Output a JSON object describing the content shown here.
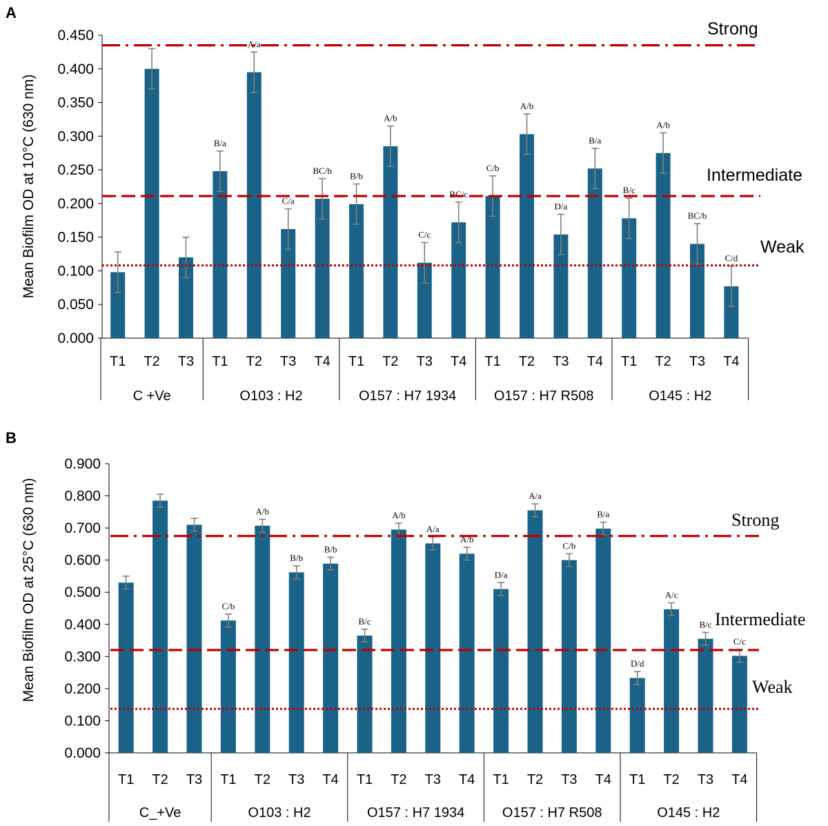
{
  "colors": {
    "bar": "#1a6287",
    "error": "#7f7f7f",
    "threshold": "#c00000",
    "axis": "#000000"
  },
  "chart_data": [
    {
      "panel": "A",
      "type": "bar",
      "ylabel": "Mean Biofilm OD at 10°C (630 nm)",
      "ylim": [
        0,
        0.45
      ],
      "yticks": [
        0,
        0.05,
        0.1,
        0.15,
        0.2,
        0.25,
        0.3,
        0.35,
        0.4,
        0.45
      ],
      "ytick_labels": [
        "0.000",
        "0.050",
        "0.100",
        "0.150",
        "0.200",
        "0.250",
        "0.300",
        "0.350",
        "0.400",
        "0.450"
      ],
      "groups": [
        {
          "name": "C  +Ve",
          "categories": [
            "T1",
            "T2",
            "T3"
          ],
          "values": [
            0.098,
            0.4,
            0.12
          ],
          "errors": [
            0.03,
            0.03,
            0.03
          ],
          "labels": [
            "",
            "",
            ""
          ]
        },
        {
          "name": "O103 : H2",
          "categories": [
            "T1",
            "T2",
            "T3",
            "T4"
          ],
          "values": [
            0.248,
            0.395,
            0.162,
            0.207
          ],
          "errors": [
            0.03,
            0.03,
            0.03,
            0.03
          ],
          "labels": [
            "B/a",
            "A/a",
            "C/a",
            "BC/b"
          ]
        },
        {
          "name": "O157 : H7 1934",
          "categories": [
            "T1",
            "T2",
            "T3",
            "T4"
          ],
          "values": [
            0.199,
            0.285,
            0.112,
            0.172
          ],
          "errors": [
            0.03,
            0.03,
            0.03,
            0.03
          ],
          "labels": [
            "B/b",
            "A/b",
            "C/c",
            "BC/c"
          ]
        },
        {
          "name": "O157 : H7 R508",
          "categories": [
            "T1",
            "T2",
            "T3",
            "T4"
          ],
          "values": [
            0.211,
            0.303,
            0.154,
            0.252
          ],
          "errors": [
            0.03,
            0.03,
            0.03,
            0.03
          ],
          "labels": [
            "C/b",
            "A/b",
            "D/a",
            "B/a"
          ]
        },
        {
          "name": "O145 : H2",
          "categories": [
            "T1",
            "T2",
            "T3",
            "T4"
          ],
          "values": [
            0.178,
            0.275,
            0.14,
            0.077
          ],
          "errors": [
            0.03,
            0.03,
            0.03,
            0.03
          ],
          "labels": [
            "B/c",
            "A/b",
            "BC/b",
            "C/d"
          ]
        }
      ],
      "thresholds": [
        {
          "name": "Strong",
          "value": 0.435,
          "style": "dash-dot"
        },
        {
          "name": "Intermediate",
          "value": 0.211,
          "style": "dashed"
        },
        {
          "name": "Weak",
          "value": 0.108,
          "style": "dotted"
        }
      ]
    },
    {
      "panel": "B",
      "type": "bar",
      "ylabel": "Mean Biofilm OD at 25°C (630 nm)",
      "ylim": [
        0,
        0.9
      ],
      "yticks": [
        0,
        0.1,
        0.2,
        0.3,
        0.4,
        0.5,
        0.6,
        0.7,
        0.8,
        0.9
      ],
      "ytick_labels": [
        "0.000",
        "0.100",
        "0.200",
        "0.300",
        "0.400",
        "0.500",
        "0.600",
        "0.700",
        "0.800",
        "0.900"
      ],
      "groups": [
        {
          "name": "C_+Ve",
          "categories": [
            "T1",
            "T2",
            "T3"
          ],
          "values": [
            0.53,
            0.785,
            0.71
          ],
          "errors": [
            0.02,
            0.02,
            0.02
          ],
          "labels": [
            "",
            "",
            ""
          ]
        },
        {
          "name": "O103 : H2",
          "categories": [
            "T1",
            "T2",
            "T3",
            "T4"
          ],
          "values": [
            0.412,
            0.707,
            0.562,
            0.589
          ],
          "errors": [
            0.02,
            0.02,
            0.02,
            0.02
          ],
          "labels": [
            "C/b",
            "A/b",
            "B/b",
            "B/b"
          ]
        },
        {
          "name": "O157 : H7 1934",
          "categories": [
            "T1",
            "T2",
            "T3",
            "T4"
          ],
          "values": [
            0.365,
            0.695,
            0.652,
            0.62
          ],
          "errors": [
            0.02,
            0.02,
            0.02,
            0.02
          ],
          "labels": [
            "B/c",
            "A/b",
            "A/a",
            "A/b"
          ]
        },
        {
          "name": "O157 : H7 R508",
          "categories": [
            "T1",
            "T2",
            "T3",
            "T4"
          ],
          "values": [
            0.51,
            0.755,
            0.6,
            0.698
          ],
          "errors": [
            0.02,
            0.02,
            0.02,
            0.02
          ],
          "labels": [
            "D/a",
            "A/a",
            "C/b",
            "B/a"
          ]
        },
        {
          "name": "O145 : H2",
          "categories": [
            "T1",
            "T2",
            "T3",
            "T4"
          ],
          "values": [
            0.233,
            0.447,
            0.355,
            0.302
          ],
          "errors": [
            0.02,
            0.02,
            0.02,
            0.02
          ],
          "labels": [
            "D/d",
            "A/c",
            "B/c",
            "C/c"
          ]
        }
      ],
      "thresholds": [
        {
          "name": "Strong",
          "value": 0.675,
          "style": "dash-dot"
        },
        {
          "name": "Intermediate",
          "value": 0.32,
          "style": "dashed"
        },
        {
          "name": "Weak",
          "value": 0.137,
          "style": "dotted"
        }
      ]
    }
  ]
}
